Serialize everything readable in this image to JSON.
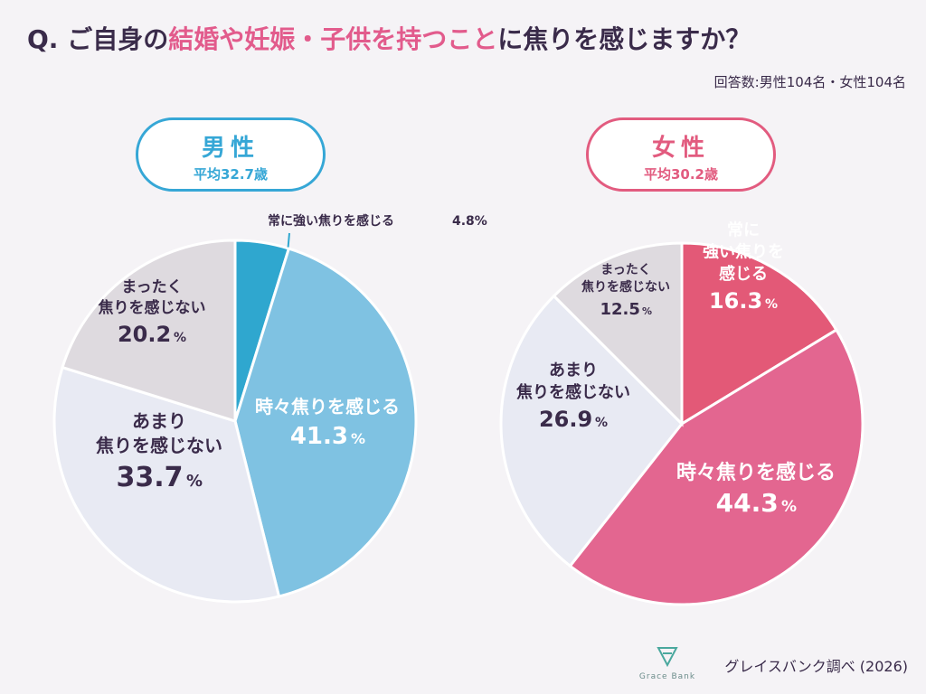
{
  "title": {
    "prefix": "Q. ご自身の",
    "highlight": "結婚や妊娠・子供を持つこと",
    "suffix": "に焦りを感じますか？"
  },
  "respondents": "回答数:男性104名・女性104名",
  "male": {
    "gender": "男性",
    "age": "平均32.7歳"
  },
  "female": {
    "gender": "女性",
    "age": "平均30.2歳"
  },
  "colors": {
    "male_strong": "#2fa7cf",
    "male_sometimes": "#7fc2e2",
    "not_much": "#e8eaf3",
    "not_at_all": "#dedadf",
    "female_strong": "#e35977",
    "female_sometimes": "#e36690",
    "title_accent": "#e25b8c"
  },
  "chart_data": [
    {
      "type": "pie",
      "title": "男性",
      "categories": [
        "常に強い焦りを感じる",
        "時々焦りを感じる",
        "あまり焦りを感じない",
        "まったく焦りを感じない"
      ],
      "values": [
        4.8,
        41.3,
        33.7,
        20.2
      ],
      "labels": [
        {
          "lines": [
            "常に強い焦りを感じる"
          ],
          "value": "4.8",
          "unit": "%"
        },
        {
          "lines": [
            "時々焦りを感じる"
          ],
          "value": "41.3",
          "unit": "%"
        },
        {
          "lines": [
            "あまり",
            "焦りを感じない"
          ],
          "value": "33.7",
          "unit": "%"
        },
        {
          "lines": [
            "まったく",
            "焦りを感じない"
          ],
          "value": "20.2",
          "unit": "%"
        }
      ]
    },
    {
      "type": "pie",
      "title": "女性",
      "categories": [
        "常に強い焦りを感じる",
        "時々焦りを感じる",
        "あまり焦りを感じない",
        "まったく焦りを感じない"
      ],
      "values": [
        16.3,
        44.3,
        26.9,
        12.5
      ],
      "labels": [
        {
          "lines": [
            "常に",
            "強い焦りを",
            "感じる"
          ],
          "value": "16.3",
          "unit": "%"
        },
        {
          "lines": [
            "時々焦りを感じる"
          ],
          "value": "44.3",
          "unit": "%"
        },
        {
          "lines": [
            "あまり",
            "焦りを感じない"
          ],
          "value": "26.9",
          "unit": "%"
        },
        {
          "lines": [
            "まったく",
            "焦りを感じない"
          ],
          "value": "12.5",
          "unit": "%"
        }
      ]
    }
  ],
  "logo_text": "Grace Bank",
  "source": "グレイスバンク調べ (2026)"
}
